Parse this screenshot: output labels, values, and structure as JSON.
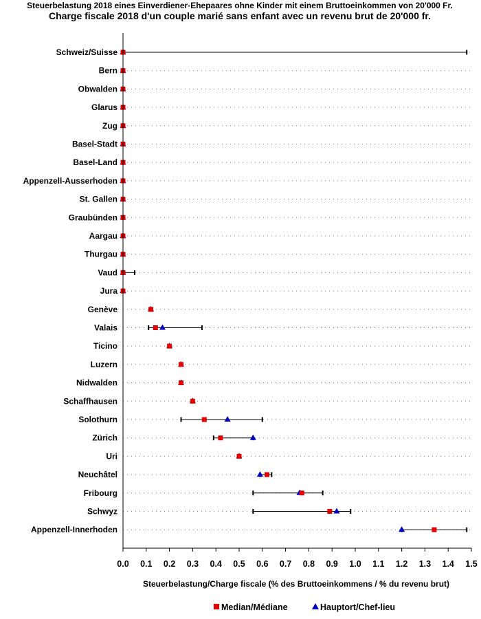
{
  "chart_data": {
    "type": "dot-range",
    "title": "Steuerbelastung 2018 eines Einverdiener-Ehepaares ohne Kinder mit einem Bruttoeinkommen von 20'000 Fr.",
    "subtitle": "Charge fiscale 2018 d'un couple marié sans enfant avec un revenu brut de 20'000 fr.",
    "xlabel": "Steuerbelastung/Charge fiscale (% des Bruttoeinkommens / % du revenu brut)",
    "xlim": [
      0.0,
      1.5
    ],
    "xticks": [
      "0.0",
      "0.1",
      "0.2",
      "0.3",
      "0.4",
      "0.5",
      "0.6",
      "0.7",
      "0.8",
      "0.9",
      "1.0",
      "1.1",
      "1.2",
      "1.3",
      "1.4",
      "1.5"
    ],
    "grid": "horizontal dotted",
    "legend_position": "bottom",
    "series": [
      {
        "name": "Median/Médiane",
        "marker": "square",
        "color": "#e00000"
      },
      {
        "name": "Hauptort/Chef-lieu",
        "marker": "triangle",
        "color": "#0000c0"
      }
    ],
    "categories": [
      "Schweiz/Suisse",
      "Bern",
      "Obwalden",
      "Glarus",
      "Zug",
      "Basel-Stadt",
      "Basel-Land",
      "Appenzell-Ausserhoden",
      "St. Gallen",
      "Graubünden",
      "Aargau",
      "Thurgau",
      "Vaud",
      "Jura",
      "Genève",
      "Valais",
      "Ticino",
      "Luzern",
      "Nidwalden",
      "Schaffhausen",
      "Solothurn",
      "Zürich",
      "Uri",
      "Neuchâtel",
      "Fribourg",
      "Schwyz",
      "Appenzell-Innerhoden"
    ],
    "rows": [
      {
        "min": 0.0,
        "max": 1.48,
        "median": 0.0,
        "capital": 0.0
      },
      {
        "min": 0.0,
        "max": 0.0,
        "median": 0.0,
        "capital": 0.0
      },
      {
        "min": 0.0,
        "max": 0.0,
        "median": 0.0,
        "capital": 0.0
      },
      {
        "min": 0.0,
        "max": 0.0,
        "median": 0.0,
        "capital": 0.0
      },
      {
        "min": 0.0,
        "max": 0.0,
        "median": 0.0,
        "capital": 0.0
      },
      {
        "min": 0.0,
        "max": 0.0,
        "median": 0.0,
        "capital": 0.0
      },
      {
        "min": 0.0,
        "max": 0.0,
        "median": 0.0,
        "capital": 0.0
      },
      {
        "min": 0.0,
        "max": 0.0,
        "median": 0.0,
        "capital": 0.0
      },
      {
        "min": 0.0,
        "max": 0.0,
        "median": 0.0,
        "capital": 0.0
      },
      {
        "min": 0.0,
        "max": 0.0,
        "median": 0.0,
        "capital": 0.0
      },
      {
        "min": 0.0,
        "max": 0.0,
        "median": 0.0,
        "capital": 0.0
      },
      {
        "min": 0.0,
        "max": 0.0,
        "median": 0.0,
        "capital": 0.0
      },
      {
        "min": 0.0,
        "max": 0.05,
        "median": 0.0,
        "capital": 0.0
      },
      {
        "min": 0.0,
        "max": 0.0,
        "median": 0.0,
        "capital": 0.0
      },
      {
        "min": 0.12,
        "max": 0.12,
        "median": 0.12,
        "capital": 0.12
      },
      {
        "min": 0.11,
        "max": 0.34,
        "median": 0.14,
        "capital": 0.17
      },
      {
        "min": 0.2,
        "max": 0.2,
        "median": 0.2,
        "capital": 0.2
      },
      {
        "min": 0.25,
        "max": 0.25,
        "median": 0.25,
        "capital": 0.25
      },
      {
        "min": 0.25,
        "max": 0.25,
        "median": 0.25,
        "capital": 0.25
      },
      {
        "min": 0.3,
        "max": 0.3,
        "median": 0.3,
        "capital": 0.3
      },
      {
        "min": 0.25,
        "max": 0.6,
        "median": 0.35,
        "capital": 0.45
      },
      {
        "min": 0.39,
        "max": 0.56,
        "median": 0.42,
        "capital": 0.56
      },
      {
        "min": 0.5,
        "max": 0.5,
        "median": 0.5,
        "capital": 0.5
      },
      {
        "min": 0.59,
        "max": 0.64,
        "median": 0.62,
        "capital": 0.59
      },
      {
        "min": 0.56,
        "max": 0.86,
        "median": 0.77,
        "capital": 0.76
      },
      {
        "min": 0.56,
        "max": 0.98,
        "median": 0.89,
        "capital": 0.92
      },
      {
        "min": 1.2,
        "max": 1.48,
        "median": 1.34,
        "capital": 1.2
      }
    ]
  }
}
